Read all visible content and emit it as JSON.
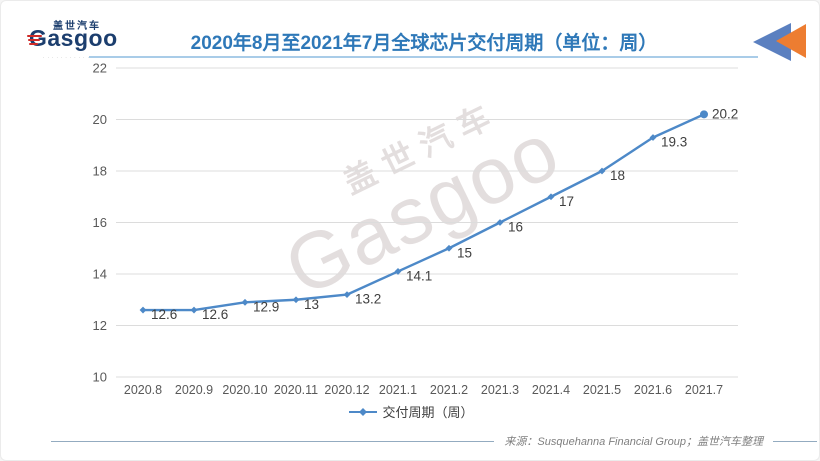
{
  "header": {
    "logo": {
      "brand_cn": "盖世汽车",
      "brand_en": "Gasgoo",
      "tagline": "· · · · · · · · · · · · ·"
    },
    "title": "2020年8月至2021年7月全球芯片交付周期（单位：周）"
  },
  "chart_data": {
    "type": "line",
    "title": "2020年8月至2021年7月全球芯片交付周期（单位：周）",
    "categories": [
      "2020.8",
      "2020.9",
      "2020.10",
      "2020.11",
      "2020.12",
      "2021.1",
      "2021.2",
      "2021.3",
      "2021.4",
      "2021.5",
      "2021.6",
      "2021.7"
    ],
    "series": [
      {
        "name": "交付周期（周）",
        "values": [
          12.6,
          12.6,
          12.9,
          13,
          13.2,
          14.1,
          15,
          16,
          17,
          18,
          19.3,
          20.2
        ]
      }
    ],
    "data_labels": [
      "12.6",
      "12.6",
      "12.9",
      "13",
      "13.2",
      "14.1",
      "15",
      "16",
      "17",
      "18",
      "19.3",
      "20.2"
    ],
    "xlabel": "",
    "ylabel": "",
    "ylim": [
      10,
      22
    ],
    "yticks": [
      10,
      12,
      14,
      16,
      18,
      20,
      22
    ],
    "grid": true,
    "legend_position": "bottom",
    "line_color": "#4d89c8"
  },
  "watermark": {
    "line1": "盖世汽车",
    "line2": "Gasgoo"
  },
  "footer": {
    "source": "来源：Susquehanna Financial Group；盖世汽车整理"
  },
  "colors": {
    "title_blue": "#2e78b8",
    "title_underline": "#a9cce8",
    "line_blue": "#4d89c8",
    "grid_gray": "#dcdcdc",
    "tick_gray": "#595959",
    "label_gray": "#3f3f3f",
    "source_gray": "#7f7f7f",
    "logo_navy": "#1c3e6e",
    "logo_red": "#cf2b28",
    "corner_blue": "#5b80c0",
    "corner_orange": "#ed7d31"
  }
}
